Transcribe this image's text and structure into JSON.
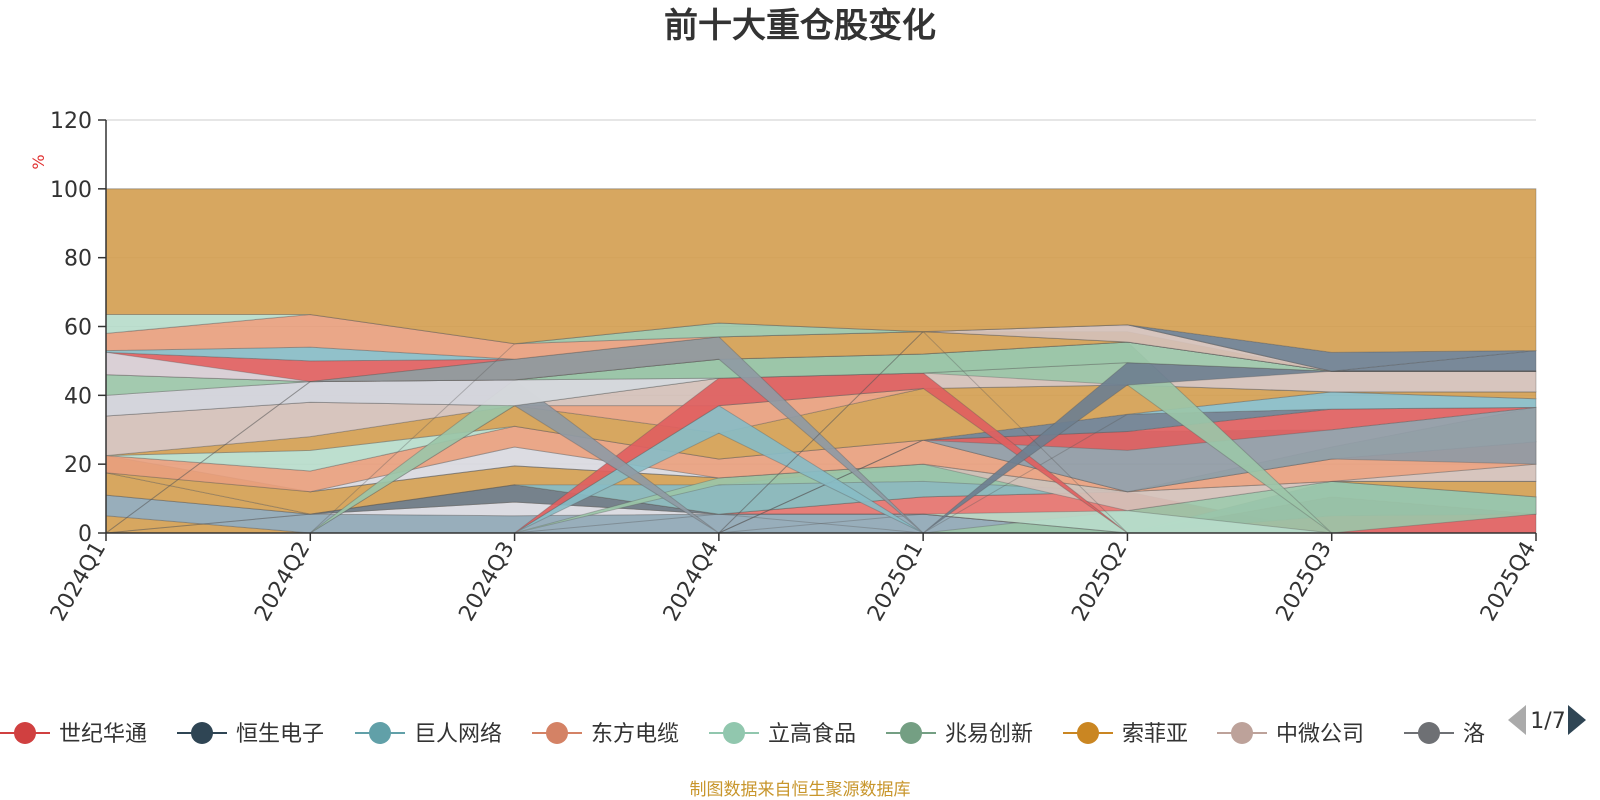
{
  "chart_data": {
    "type": "area",
    "title": "前十大重仓股变化",
    "ylabel": "%",
    "ylim": [
      0,
      120
    ],
    "yticks": [
      "0",
      "20",
      "40",
      "60",
      "80",
      "100",
      "120"
    ],
    "categories": [
      "2024Q1",
      "2024Q2",
      "2024Q3",
      "2024Q4",
      "2025Q1",
      "2025Q2",
      "2025Q3",
      "2025Q4"
    ],
    "grid": true,
    "legend_position": "bottom",
    "layers": [
      {
        "color": "#e8a07e",
        "base": [
          0,
          0,
          0,
          5.5,
          5.5,
          0,
          0,
          0
        ],
        "top": [
          0,
          0,
          0,
          5.5,
          5.5,
          0,
          0,
          0
        ]
      },
      {
        "color": "#d4a053",
        "base": [
          0,
          0,
          0,
          0,
          0,
          0,
          0,
          0
        ],
        "top": [
          5,
          0,
          0,
          0,
          0,
          0,
          0,
          0
        ]
      },
      {
        "color": "#8fa7b5",
        "base": [
          5,
          0,
          0,
          0,
          0,
          0,
          0,
          0
        ],
        "top": [
          11,
          5.5,
          5,
          5.5,
          5.5,
          0,
          0,
          0
        ]
      },
      {
        "color": "#d9d9e0",
        "base": [
          11,
          5.5,
          5,
          5.5,
          5.5,
          0,
          0,
          0
        ],
        "top": [
          11,
          5.5,
          9,
          5.5,
          5.5,
          0,
          0,
          0
        ]
      },
      {
        "color": "#e5736e",
        "base": [
          0,
          0,
          0,
          5.5,
          5.5,
          0,
          0,
          0
        ],
        "top": [
          0,
          0,
          0,
          5.5,
          10.5,
          12,
          0,
          0
        ]
      },
      {
        "color": "#e06060",
        "base": [
          0,
          0,
          0,
          0,
          0,
          0,
          0,
          0
        ],
        "top": [
          0,
          0,
          0,
          0,
          0,
          0,
          5,
          5.5
        ]
      },
      {
        "color": "#6e7f90",
        "base": [
          0,
          0,
          0,
          0,
          0,
          0,
          5,
          5.5
        ],
        "top": [
          0,
          0,
          0,
          0,
          0,
          0,
          10.5,
          5.5
        ]
      },
      {
        "color": "#88bcc6",
        "base": [
          0,
          0,
          0,
          0,
          0,
          0,
          10.5,
          5.5
        ],
        "top": [
          0,
          0,
          0,
          0,
          0,
          0,
          15,
          10.5
        ]
      },
      {
        "color": "#9bc6a8",
        "base": [
          0,
          0,
          0,
          0,
          0,
          0,
          0,
          5.5
        ],
        "top": [
          0,
          0,
          0,
          0,
          0,
          6.5,
          15,
          10.5
        ]
      },
      {
        "color": "#b7dccb",
        "base": [
          0,
          0,
          0,
          0,
          5.5,
          0,
          0,
          0
        ],
        "top": [
          0,
          0,
          0,
          0,
          5.5,
          6.5,
          0,
          0
        ]
      },
      {
        "color": "#d4a053",
        "base": [
          11,
          5.5,
          9,
          5.5,
          5.5,
          0,
          0,
          0
        ],
        "top": [
          17.5,
          5.5,
          14,
          5.5,
          5.5,
          0,
          0,
          0
        ]
      },
      {
        "color": "#6e7f90",
        "base": [
          0,
          5.5,
          9,
          5.5,
          0,
          0,
          0,
          0
        ],
        "top": [
          0,
          5.5,
          14,
          5.5,
          0,
          0,
          0,
          0
        ]
      },
      {
        "color": "#d4a053",
        "base": [
          17.5,
          5.5,
          14,
          5.5,
          10.5,
          12,
          15,
          10.5
        ],
        "top": [
          22.5,
          12,
          19.5,
          16,
          20,
          12,
          15,
          15
        ]
      },
      {
        "color": "#d9d9e0",
        "base": [
          17.5,
          12,
          19.5,
          16,
          20,
          12,
          15,
          15
        ],
        "top": [
          17.5,
          12,
          25,
          16,
          20,
          12,
          15,
          15
        ]
      },
      {
        "color": "#88bcc6",
        "base": [
          0,
          5.5,
          14,
          5.5,
          10.5,
          12,
          15,
          15
        ],
        "top": [
          0,
          5.5,
          14,
          14,
          20,
          12,
          15,
          15
        ]
      },
      {
        "color": "#9bc6a8",
        "base": [
          0,
          0,
          0,
          14,
          15,
          12,
          15,
          15
        ],
        "top": [
          0,
          0,
          0,
          16,
          20,
          12,
          15,
          15
        ]
      },
      {
        "color": "#d4c0b8",
        "base": [
          22.5,
          12,
          19.5,
          16,
          20,
          6.5,
          15,
          15
        ],
        "top": [
          22.5,
          12,
          19.5,
          16,
          20,
          12,
          15,
          20
        ]
      },
      {
        "color": "#e8a07e",
        "base": [
          17.5,
          12,
          25,
          16,
          20,
          12,
          15,
          20
        ],
        "top": [
          22.5,
          18,
          31,
          21.5,
          27,
          12,
          21.5,
          26.5
        ]
      },
      {
        "color": "#b7dccb",
        "base": [
          22.5,
          18,
          31,
          21.5,
          27,
          12,
          21.5,
          26.5
        ],
        "top": [
          22.5,
          24,
          31,
          21.5,
          27,
          12,
          25,
          36.5
        ]
      },
      {
        "color": "#8f9aa4",
        "base": [
          0,
          0,
          0,
          0,
          27,
          12,
          21.5,
          20
        ],
        "top": [
          0,
          0,
          0,
          0,
          27,
          29.5,
          30,
          36.5
        ]
      },
      {
        "color": "#e06060",
        "base": [
          0,
          0,
          0,
          0,
          27,
          24,
          30,
          36.5
        ],
        "top": [
          0,
          0,
          0,
          0,
          27,
          29.5,
          36,
          36.5
        ]
      },
      {
        "color": "#6e7f90",
        "base": [
          0,
          0,
          0,
          0,
          27,
          29.5,
          36,
          36.5
        ],
        "top": [
          0,
          0,
          0,
          0,
          27,
          34.5,
          36,
          36.5
        ]
      },
      {
        "color": "#88bcc6",
        "base": [
          0,
          0,
          0,
          0,
          0,
          34.5,
          36,
          36.5
        ],
        "top": [
          0,
          0,
          0,
          0,
          0,
          34.5,
          41,
          39
        ]
      },
      {
        "color": "#d4a053",
        "base": [
          22.5,
          24,
          31,
          21.5,
          27,
          34.5,
          41,
          39
        ],
        "top": [
          22.5,
          28,
          37,
          29,
          42,
          43,
          41,
          41
        ]
      },
      {
        "color": "#e8a07e",
        "base": [
          0,
          0,
          37,
          29,
          42,
          43,
          41,
          41
        ],
        "top": [
          0,
          0,
          37,
          37,
          42,
          43,
          41,
          41
        ]
      },
      {
        "color": "#88bcc6",
        "base": [
          0,
          0,
          0,
          29,
          0,
          0,
          0,
          0
        ],
        "top": [
          0,
          0,
          0,
          37,
          0,
          0,
          0,
          0
        ]
      },
      {
        "color": "#d4c0b8",
        "base": [
          22.5,
          28,
          37,
          37,
          42,
          43,
          41,
          41
        ],
        "top": [
          34,
          38,
          37,
          45,
          46.5,
          49.5,
          47,
          47
        ]
      },
      {
        "color": "#e06060",
        "base": [
          0,
          0,
          0,
          37,
          42,
          0,
          0,
          0
        ],
        "top": [
          0,
          0,
          0,
          45,
          46.5,
          0,
          0,
          0
        ]
      },
      {
        "color": "#8f9aa4",
        "base": [
          34,
          38,
          37,
          0,
          0,
          0,
          0,
          0
        ],
        "top": [
          39.5,
          44,
          44.5,
          0,
          0,
          0,
          0,
          0
        ]
      },
      {
        "color": "#9bc6a8",
        "base": [
          0,
          0,
          37,
          45,
          46.5,
          43,
          0,
          0
        ],
        "top": [
          0,
          0,
          44.5,
          50.5,
          52,
          55.5,
          0,
          0
        ]
      },
      {
        "color": "#6e7f90",
        "base": [
          0,
          0,
          0,
          0,
          0,
          43,
          47,
          47
        ],
        "top": [
          0,
          0,
          0,
          0,
          0,
          49.5,
          47,
          53
        ]
      },
      {
        "color": "#d9d9e0",
        "base": [
          34,
          38,
          37,
          45,
          46.5,
          49.5,
          47,
          47
        ],
        "top": [
          40,
          44,
          44.5,
          45,
          46.5,
          49.5,
          47,
          47
        ]
      },
      {
        "color": "#9bc6a8",
        "base": [
          40,
          44,
          44.5,
          45,
          46.5,
          49.5,
          47,
          47
        ],
        "top": [
          46,
          44,
          44.5,
          50.5,
          52,
          55.5,
          47,
          47
        ]
      },
      {
        "color": "#e06060",
        "base": [
          46,
          44,
          44.5,
          50.5,
          52,
          55.5,
          47,
          47
        ],
        "top": [
          52.5,
          50,
          50.5,
          50.5,
          52,
          55.5,
          47,
          47
        ]
      },
      {
        "color": "#d9d9e0",
        "base": [
          46,
          44,
          44.5,
          50.5,
          52,
          55.5,
          47,
          47
        ],
        "top": [
          52.5,
          44,
          44.5,
          50.5,
          52,
          55.5,
          47,
          47
        ]
      },
      {
        "color": "#d4a053",
        "base": [
          0,
          44,
          44.5,
          50.5,
          52,
          55.5,
          47,
          47
        ],
        "top": [
          0,
          44,
          50.5,
          57,
          58.5,
          58.5,
          47,
          47
        ]
      },
      {
        "color": "#88bcc6",
        "base": [
          52.5,
          50,
          50.5,
          57,
          58.5,
          55.5,
          47,
          47
        ],
        "top": [
          53,
          54,
          50.5,
          57,
          58.5,
          55.5,
          47,
          47
        ]
      },
      {
        "color": "#8f9aa4",
        "base": [
          0,
          44,
          44.5,
          50.5,
          0,
          0,
          0,
          0
        ],
        "top": [
          0,
          44,
          50.5,
          57,
          0,
          0,
          0,
          0
        ]
      },
      {
        "color": "#e8a07e",
        "base": [
          53,
          54,
          50.5,
          57,
          58.5,
          55.5,
          47,
          47
        ],
        "top": [
          58,
          63.5,
          55,
          57,
          58.5,
          55.5,
          47,
          47
        ]
      },
      {
        "color": "#9bc6a8",
        "base": [
          0,
          0,
          55,
          57,
          58.5,
          0,
          0,
          0
        ],
        "top": [
          0,
          0,
          55,
          61,
          58.5,
          0,
          0,
          0
        ]
      },
      {
        "color": "#d4c0b8",
        "base": [
          0,
          0,
          0,
          0,
          58.5,
          55.5,
          47,
          47
        ],
        "top": [
          0,
          0,
          0,
          0,
          58.5,
          60.5,
          47,
          47
        ]
      },
      {
        "color": "#b7dccb",
        "base": [
          58,
          63.5,
          55,
          61,
          58.5,
          60.5,
          47,
          47
        ],
        "top": [
          63.5,
          63.5,
          55,
          61,
          58.5,
          60.5,
          47,
          47
        ]
      },
      {
        "color": "#6e7f90",
        "base": [
          0,
          0,
          0,
          0,
          58.5,
          60.5,
          47,
          53
        ],
        "top": [
          0,
          0,
          0,
          0,
          58.5,
          60.5,
          52.5,
          53
        ]
      },
      {
        "color": "#d4a053",
        "base": [
          63.5,
          63.5,
          55,
          61,
          58.5,
          60.5,
          52.5,
          53
        ],
        "top": [
          100,
          100,
          100,
          100,
          100,
          100,
          100,
          100
        ]
      }
    ],
    "series": [
      {
        "name": "世纪华通",
        "color": "#d04040"
      },
      {
        "name": "恒生电子",
        "color": "#2f4554"
      },
      {
        "name": "巨人网络",
        "color": "#61a0a8"
      },
      {
        "name": "东方电缆",
        "color": "#d48265"
      },
      {
        "name": "立高食品",
        "color": "#91c7ae"
      },
      {
        "name": "兆易创新",
        "color": "#749f83"
      },
      {
        "name": "索菲亚",
        "color": "#ca8622"
      },
      {
        "name": "中微公司",
        "color": "#bda29a"
      },
      {
        "name": "洛",
        "color": "#6e7074"
      }
    ]
  },
  "legend": {
    "pager": "1/7"
  },
  "source": "制图数据来自恒生聚源数据库"
}
